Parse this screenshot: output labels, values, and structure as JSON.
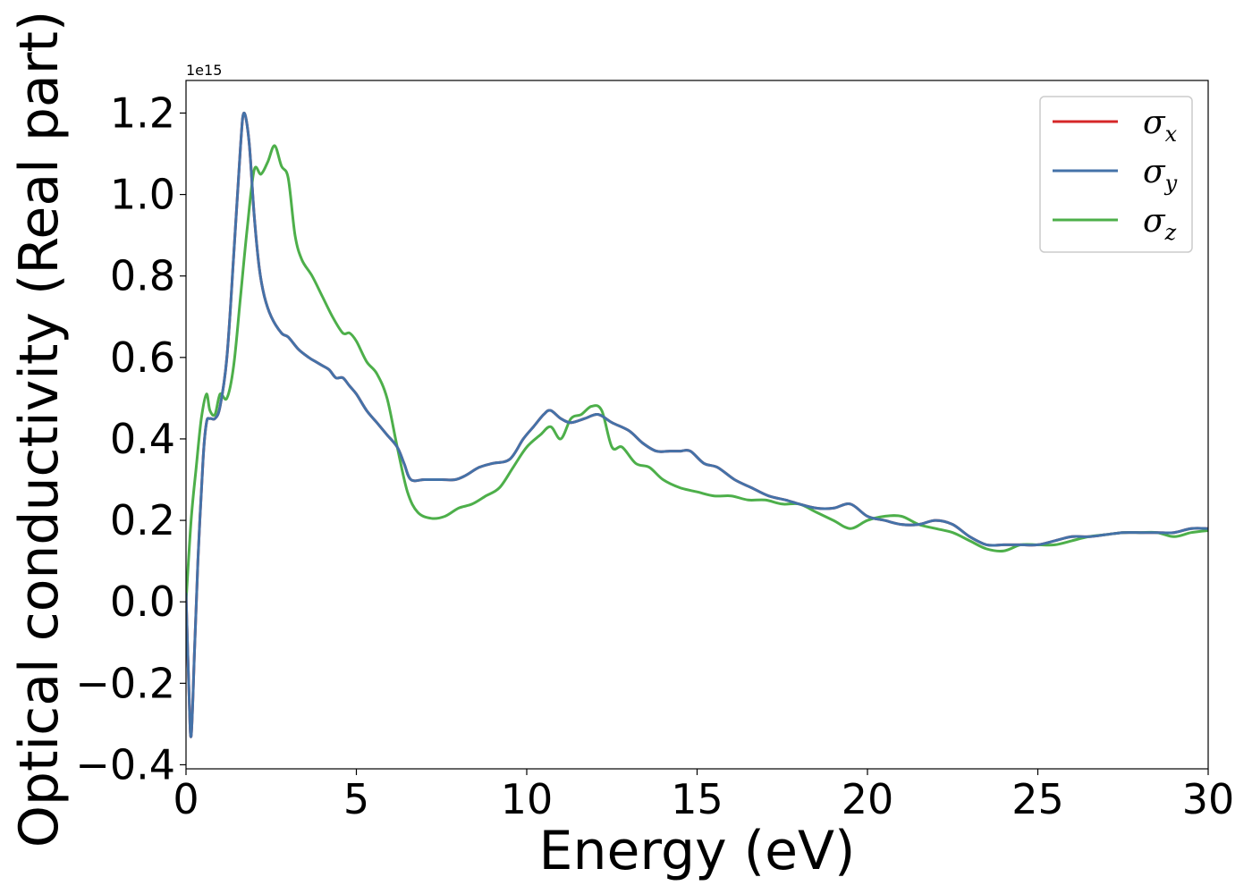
{
  "chart_data": {
    "type": "line",
    "xlabel": "Energy (eV)",
    "ylabel": "Optical conductivity (Real part)",
    "y_offset_label": "1e15",
    "xlim": [
      0,
      30
    ],
    "ylim": [
      -0.41,
      1.28
    ],
    "xticks": [
      0,
      5,
      10,
      15,
      20,
      25,
      30
    ],
    "yticks": [
      -0.4,
      -0.2,
      0.0,
      0.2,
      0.4,
      0.6,
      0.8,
      1.0,
      1.2
    ],
    "xtick_labels": [
      "0",
      "5",
      "10",
      "15",
      "20",
      "25",
      "30"
    ],
    "ytick_labels": [
      "−0.4",
      "−0.2",
      "0.0",
      "0.2",
      "0.4",
      "0.6",
      "0.8",
      "1.0",
      "1.2"
    ],
    "grid": false,
    "legend": "top-right",
    "series": [
      {
        "name": "σx",
        "symbol": "σ",
        "sub": "x",
        "color": "#d62728",
        "x": [
          0,
          0.08,
          0.15,
          0.25,
          0.35,
          0.5,
          0.6,
          0.7,
          0.85,
          1.0,
          1.2,
          1.4,
          1.6,
          1.7,
          1.85,
          2.0,
          2.15,
          2.3,
          2.5,
          2.8,
          3.0,
          3.3,
          3.6,
          3.8,
          4.0,
          4.2,
          4.4,
          4.6,
          4.8,
          5.0,
          5.3,
          5.6,
          5.9,
          6.2,
          6.4,
          6.6,
          7.0,
          7.5,
          7.9,
          8.2,
          8.6,
          9.0,
          9.5,
          9.9,
          10.2,
          10.5,
          10.7,
          11.0,
          11.3,
          11.7,
          12.1,
          12.5,
          13.0,
          13.4,
          13.8,
          14.2,
          14.5,
          14.8,
          15.2,
          15.6,
          16.1,
          16.6,
          17.1,
          17.6,
          18.0,
          18.5,
          19.0,
          19.5,
          20.0,
          20.5,
          21.0,
          21.5,
          22.0,
          22.5,
          23.0,
          23.5,
          24.0,
          24.5,
          25.0,
          25.5,
          26.0,
          26.5,
          27.0,
          27.5,
          28.0,
          28.5,
          29.0,
          29.5,
          30.0
        ],
        "y": [
          0.02,
          -0.2,
          -0.33,
          -0.12,
          0.1,
          0.35,
          0.44,
          0.45,
          0.45,
          0.48,
          0.6,
          0.85,
          1.12,
          1.2,
          1.13,
          0.95,
          0.82,
          0.75,
          0.7,
          0.66,
          0.65,
          0.62,
          0.6,
          0.59,
          0.58,
          0.57,
          0.55,
          0.55,
          0.53,
          0.51,
          0.47,
          0.44,
          0.41,
          0.38,
          0.34,
          0.3,
          0.3,
          0.3,
          0.3,
          0.31,
          0.33,
          0.34,
          0.35,
          0.4,
          0.43,
          0.46,
          0.47,
          0.45,
          0.44,
          0.45,
          0.46,
          0.44,
          0.42,
          0.39,
          0.37,
          0.37,
          0.37,
          0.37,
          0.34,
          0.33,
          0.3,
          0.28,
          0.26,
          0.25,
          0.24,
          0.23,
          0.23,
          0.24,
          0.21,
          0.2,
          0.19,
          0.19,
          0.2,
          0.19,
          0.16,
          0.14,
          0.14,
          0.14,
          0.14,
          0.15,
          0.16,
          0.16,
          0.165,
          0.17,
          0.17,
          0.17,
          0.17,
          0.18,
          0.18
        ]
      },
      {
        "name": "σy",
        "symbol": "σ",
        "sub": "y",
        "color": "#4472a8",
        "x": [
          0,
          0.08,
          0.15,
          0.25,
          0.35,
          0.5,
          0.6,
          0.7,
          0.85,
          1.0,
          1.2,
          1.4,
          1.6,
          1.7,
          1.85,
          2.0,
          2.15,
          2.3,
          2.5,
          2.8,
          3.0,
          3.3,
          3.6,
          3.8,
          4.0,
          4.2,
          4.4,
          4.6,
          4.8,
          5.0,
          5.3,
          5.6,
          5.9,
          6.2,
          6.4,
          6.6,
          7.0,
          7.5,
          7.9,
          8.2,
          8.6,
          9.0,
          9.5,
          9.9,
          10.2,
          10.5,
          10.7,
          11.0,
          11.3,
          11.7,
          12.1,
          12.5,
          13.0,
          13.4,
          13.8,
          14.2,
          14.5,
          14.8,
          15.2,
          15.6,
          16.1,
          16.6,
          17.1,
          17.6,
          18.0,
          18.5,
          19.0,
          19.5,
          20.0,
          20.5,
          21.0,
          21.5,
          22.0,
          22.5,
          23.0,
          23.5,
          24.0,
          24.5,
          25.0,
          25.5,
          26.0,
          26.5,
          27.0,
          27.5,
          28.0,
          28.5,
          29.0,
          29.5,
          30.0
        ],
        "y": [
          0.02,
          -0.2,
          -0.33,
          -0.12,
          0.1,
          0.35,
          0.44,
          0.45,
          0.45,
          0.48,
          0.6,
          0.85,
          1.12,
          1.2,
          1.13,
          0.95,
          0.82,
          0.75,
          0.7,
          0.66,
          0.65,
          0.62,
          0.6,
          0.59,
          0.58,
          0.57,
          0.55,
          0.55,
          0.53,
          0.51,
          0.47,
          0.44,
          0.41,
          0.38,
          0.34,
          0.3,
          0.3,
          0.3,
          0.3,
          0.31,
          0.33,
          0.34,
          0.35,
          0.4,
          0.43,
          0.46,
          0.47,
          0.45,
          0.44,
          0.45,
          0.46,
          0.44,
          0.42,
          0.39,
          0.37,
          0.37,
          0.37,
          0.37,
          0.34,
          0.33,
          0.3,
          0.28,
          0.26,
          0.25,
          0.24,
          0.23,
          0.23,
          0.24,
          0.21,
          0.2,
          0.19,
          0.19,
          0.2,
          0.19,
          0.16,
          0.14,
          0.14,
          0.14,
          0.14,
          0.15,
          0.16,
          0.16,
          0.165,
          0.17,
          0.17,
          0.17,
          0.17,
          0.18,
          0.18
        ]
      },
      {
        "name": "σz",
        "symbol": "σ",
        "sub": "z",
        "color": "#4daf4a",
        "x": [
          0,
          0.15,
          0.3,
          0.45,
          0.6,
          0.7,
          0.85,
          1.0,
          1.2,
          1.4,
          1.6,
          1.8,
          2.0,
          2.2,
          2.4,
          2.6,
          2.8,
          3.0,
          3.2,
          3.4,
          3.7,
          4.0,
          4.3,
          4.6,
          4.8,
          5.0,
          5.3,
          5.6,
          5.9,
          6.2,
          6.5,
          6.8,
          7.2,
          7.6,
          8.0,
          8.4,
          8.8,
          9.2,
          9.6,
          10.0,
          10.4,
          10.7,
          11.0,
          11.3,
          11.6,
          11.9,
          12.2,
          12.5,
          12.8,
          13.2,
          13.6,
          14.0,
          14.5,
          15.0,
          15.5,
          16.0,
          16.5,
          17.0,
          17.5,
          18.0,
          18.5,
          19.0,
          19.5,
          20.0,
          20.5,
          21.0,
          21.5,
          22.0,
          22.5,
          23.0,
          23.5,
          24.0,
          24.5,
          25.0,
          25.5,
          26.0,
          26.5,
          27.0,
          27.5,
          28.0,
          28.5,
          29.0,
          29.5,
          30.0
        ],
        "y": [
          0.0,
          0.2,
          0.33,
          0.45,
          0.51,
          0.47,
          0.46,
          0.51,
          0.5,
          0.58,
          0.75,
          0.92,
          1.06,
          1.05,
          1.08,
          1.12,
          1.07,
          1.04,
          0.9,
          0.84,
          0.8,
          0.75,
          0.7,
          0.66,
          0.66,
          0.64,
          0.59,
          0.56,
          0.5,
          0.38,
          0.27,
          0.22,
          0.205,
          0.21,
          0.23,
          0.24,
          0.26,
          0.28,
          0.33,
          0.38,
          0.41,
          0.43,
          0.4,
          0.45,
          0.46,
          0.48,
          0.47,
          0.38,
          0.38,
          0.34,
          0.33,
          0.3,
          0.28,
          0.27,
          0.26,
          0.26,
          0.25,
          0.25,
          0.24,
          0.24,
          0.22,
          0.2,
          0.18,
          0.2,
          0.21,
          0.21,
          0.19,
          0.18,
          0.17,
          0.15,
          0.13,
          0.125,
          0.14,
          0.14,
          0.14,
          0.15,
          0.16,
          0.165,
          0.17,
          0.17,
          0.17,
          0.16,
          0.17,
          0.175
        ]
      }
    ]
  }
}
